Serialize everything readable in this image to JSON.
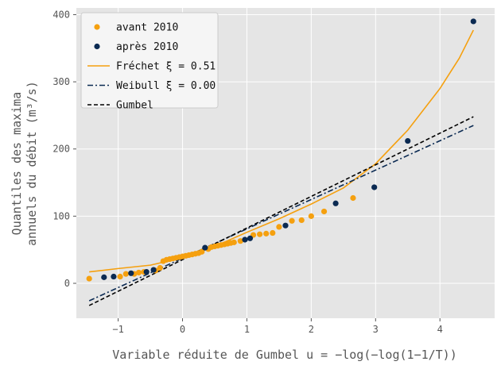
{
  "chart_data": {
    "type": "scatter",
    "xlabel": "Variable réduite de Gumbel u = −log(−log(1−1/T))",
    "ylabel_line1": "Quantiles des maxima",
    "ylabel_line2": "annuels du débit (m³/s)",
    "xlim": [
      -1.65,
      4.85
    ],
    "ylim": [
      -52,
      410
    ],
    "x_ticks": [
      -1,
      0,
      1,
      2,
      3,
      4
    ],
    "y_ticks": [
      0,
      100,
      200,
      300,
      400
    ],
    "x_tick_labels": [
      "−1",
      "0",
      "1",
      "2",
      "3",
      "4"
    ],
    "y_tick_labels": [
      "0",
      "100",
      "200",
      "300",
      "400"
    ],
    "grid": true,
    "legend_position": "top-left",
    "series": [
      {
        "name": "avant 2010",
        "kind": "points",
        "color": "#f5a00f",
        "points": [
          [
            -1.45,
            7
          ],
          [
            -0.97,
            10
          ],
          [
            -0.88,
            14
          ],
          [
            -0.75,
            14
          ],
          [
            -0.68,
            16
          ],
          [
            -0.6,
            17
          ],
          [
            -0.42,
            19
          ],
          [
            -0.35,
            23
          ],
          [
            -0.3,
            33
          ],
          [
            -0.25,
            35
          ],
          [
            -0.2,
            36
          ],
          [
            -0.15,
            37
          ],
          [
            -0.1,
            38
          ],
          [
            -0.05,
            39
          ],
          [
            0.0,
            40
          ],
          [
            0.05,
            41
          ],
          [
            0.1,
            42
          ],
          [
            0.15,
            43
          ],
          [
            0.2,
            44
          ],
          [
            0.25,
            45
          ],
          [
            0.3,
            47
          ],
          [
            0.4,
            51
          ],
          [
            0.45,
            54
          ],
          [
            0.5,
            55
          ],
          [
            0.55,
            56
          ],
          [
            0.6,
            57
          ],
          [
            0.65,
            58
          ],
          [
            0.7,
            59
          ],
          [
            0.75,
            60
          ],
          [
            0.8,
            61
          ],
          [
            0.9,
            63
          ],
          [
            1.1,
            72
          ],
          [
            1.2,
            73
          ],
          [
            1.3,
            74
          ],
          [
            1.4,
            75
          ],
          [
            1.5,
            84
          ],
          [
            1.7,
            93
          ],
          [
            1.85,
            94
          ],
          [
            2.0,
            100
          ],
          [
            2.2,
            107
          ],
          [
            2.65,
            127
          ]
        ]
      },
      {
        "name": "après 2010",
        "kind": "points",
        "color": "#0b2a52",
        "points": [
          [
            -1.22,
            9
          ],
          [
            -1.07,
            10
          ],
          [
            -0.8,
            15
          ],
          [
            -0.56,
            17
          ],
          [
            -0.45,
            20
          ],
          [
            0.35,
            53
          ],
          [
            0.97,
            65
          ],
          [
            1.05,
            67
          ],
          [
            1.6,
            86
          ],
          [
            2.38,
            119
          ],
          [
            2.98,
            143
          ],
          [
            3.5,
            212
          ],
          [
            4.52,
            390
          ]
        ]
      },
      {
        "name": "Fréchet ξ = 0.51",
        "kind": "line",
        "color": "#f5a00f",
        "dash": "",
        "points": [
          [
            -1.45,
            17
          ],
          [
            -1.0,
            22
          ],
          [
            -0.5,
            27
          ],
          [
            0.0,
            38
          ],
          [
            0.5,
            55
          ],
          [
            1.0,
            76
          ],
          [
            1.5,
            96
          ],
          [
            2.0,
            118
          ],
          [
            2.5,
            142
          ],
          [
            3.0,
            178
          ],
          [
            3.5,
            228
          ],
          [
            4.0,
            290
          ],
          [
            4.3,
            335
          ],
          [
            4.52,
            377
          ]
        ]
      },
      {
        "name": "Weibull ξ = 0.00",
        "kind": "line",
        "color": "#0b2a52",
        "dash": "7,3,2,3",
        "points": [
          [
            -1.45,
            -26
          ],
          [
            4.52,
            235
          ]
        ]
      },
      {
        "name": "Gumbel",
        "kind": "line",
        "color": "#000000",
        "dash": "5,3",
        "points": [
          [
            -1.45,
            -33
          ],
          [
            4.52,
            248
          ]
        ]
      }
    ]
  },
  "legend": {
    "items": [
      {
        "label": "avant 2010",
        "kind": "point",
        "color": "#f5a00f",
        "dash": ""
      },
      {
        "label": "après 2010",
        "kind": "point",
        "color": "#0b2a52",
        "dash": ""
      },
      {
        "label": "Fréchet ξ = 0.51",
        "kind": "line",
        "color": "#f5a00f",
        "dash": ""
      },
      {
        "label": "Weibull ξ = 0.00",
        "kind": "line",
        "color": "#0b2a52",
        "dash": "7,3,2,3"
      },
      {
        "label": "Gumbel",
        "kind": "line",
        "color": "#000000",
        "dash": "5,3"
      }
    ]
  }
}
